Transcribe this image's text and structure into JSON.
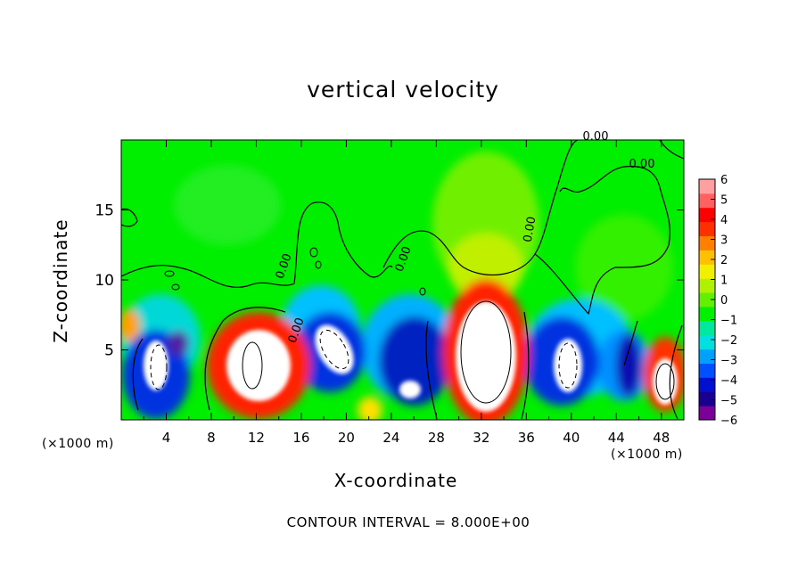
{
  "chart_data": {
    "type": "heatmap",
    "title": "vertical velocity",
    "xlabel": "X-coordinate",
    "ylabel": "Z-coordinate",
    "x_unit_left": "(×1000 m)",
    "x_unit_right": "(×1000 m)",
    "footer": "CONTOUR INTERVAL = 8.000E+00",
    "xlim": [
      0,
      50
    ],
    "ylim": [
      0,
      20
    ],
    "x_ticks": [
      "4",
      "8",
      "12",
      "16",
      "20",
      "24",
      "28",
      "32",
      "36",
      "40",
      "44",
      "48"
    ],
    "y_ticks": [
      "5",
      "10",
      "15"
    ],
    "colorbar": {
      "ticks": [
        "6",
        "5",
        "4",
        "3",
        "2",
        "1",
        "0",
        "−1",
        "−2",
        "−3",
        "−4",
        "−5",
        "−6"
      ],
      "range": [
        -6,
        6
      ],
      "colors": [
        "#7a0099",
        "#1a0090",
        "#0010d0",
        "#0050ff",
        "#00a0ff",
        "#00e0e0",
        "#00e8a0",
        "#00f000",
        "#60f000",
        "#b0f000",
        "#f0f000",
        "#ffc000",
        "#ff8000",
        "#ff3000",
        "#ff0000",
        "#ff6060",
        "#ffa0a0"
      ]
    },
    "contour_labels": [
      "0.00",
      "0.00",
      "0.00",
      "0.00",
      "0.00",
      "0.00"
    ],
    "features": [
      {
        "x": 32.5,
        "z": 4.5,
        "value": 8,
        "sign": "updraft"
      },
      {
        "x": 12,
        "z": 4.5,
        "value": 7,
        "sign": "updraft"
      },
      {
        "x": 48,
        "z": 3,
        "value": 7,
        "sign": "updraft"
      },
      {
        "x": 3,
        "z": 4,
        "value": -7,
        "sign": "downdraft"
      },
      {
        "x": 18.5,
        "z": 5.2,
        "value": -7,
        "sign": "downdraft"
      },
      {
        "x": 25.5,
        "z": 2.5,
        "value": -6,
        "sign": "downdraft"
      },
      {
        "x": 39.5,
        "z": 4.5,
        "value": -7,
        "sign": "downdraft"
      }
    ]
  }
}
